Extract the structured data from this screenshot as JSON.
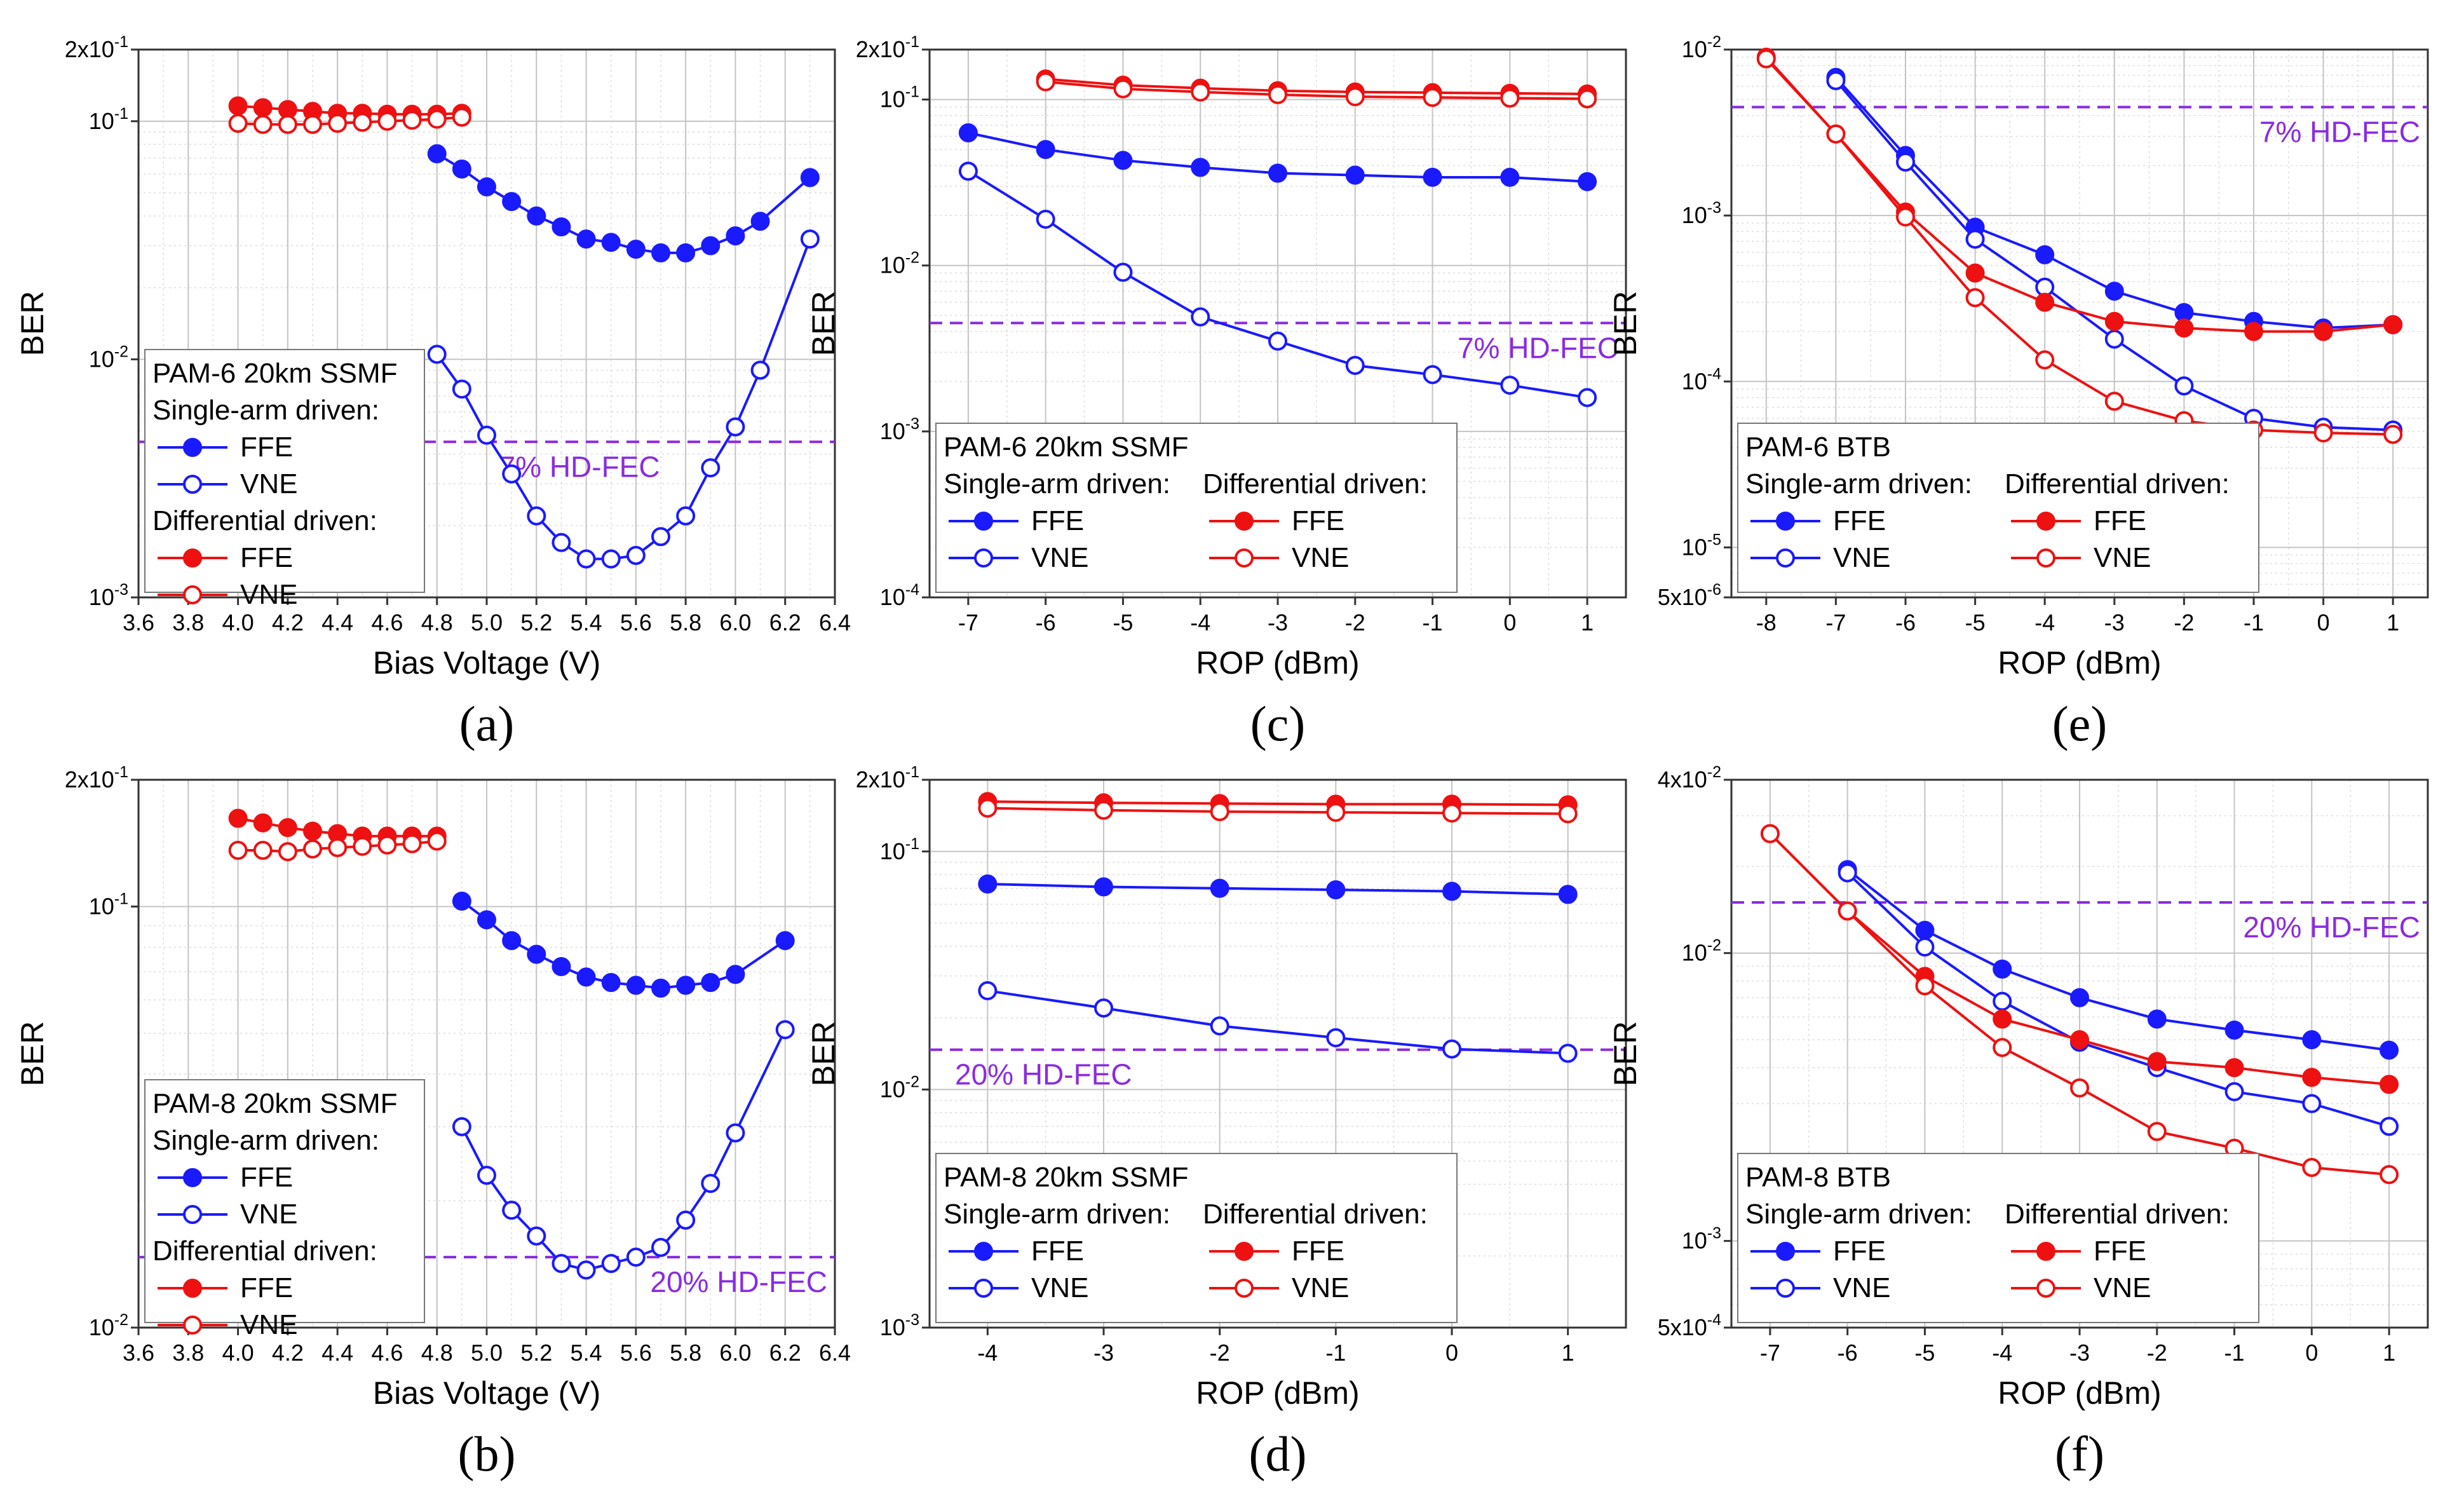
{
  "chart_data": [
    {
      "id": "a",
      "panel_label": "(a)",
      "type": "line",
      "yscale": "log",
      "xlabel": "Bias Voltage (V)",
      "ylabel": "BER",
      "xlim": [
        3.6,
        6.4
      ],
      "ylim": [
        0.001,
        0.2
      ],
      "xticks": [
        "3.6",
        "3.8",
        "4.0",
        "4.2",
        "4.4",
        "4.6",
        "4.8",
        "5.0",
        "5.2",
        "5.4",
        "5.6",
        "5.8",
        "6.0",
        "6.2",
        "6.4"
      ],
      "yticks": [
        {
          "v": 0.001,
          "label": "10-3"
        },
        {
          "v": 0.01,
          "label": "10-2"
        },
        {
          "v": 0.1,
          "label": "10-1"
        },
        {
          "v": 0.2,
          "label": "2x10-1"
        }
      ],
      "fec": {
        "value": 0.0045,
        "label": "7% HD-FEC",
        "label_pos": "left"
      },
      "legend": {
        "title": "PAM-6 20km SSMF",
        "layout": "stacked",
        "position": "lower-left",
        "group1": "Single-arm driven:",
        "group2": "Differential driven:",
        "ffe": "FFE",
        "vne": "VNE"
      },
      "series": [
        {
          "name": "FFE",
          "group": "single",
          "color": "#1a1aff",
          "marker": "filled",
          "x": [
            4.8,
            4.9,
            5.0,
            5.1,
            5.2,
            5.3,
            5.4,
            5.5,
            5.6,
            5.7,
            5.8,
            5.9,
            6.0,
            6.1,
            6.3
          ],
          "y": [
            0.073,
            0.063,
            0.053,
            0.046,
            0.04,
            0.036,
            0.032,
            0.031,
            0.029,
            0.028,
            0.028,
            0.03,
            0.033,
            0.038,
            0.058
          ]
        },
        {
          "name": "VNE",
          "group": "single",
          "color": "#1a1aff",
          "marker": "open",
          "x": [
            4.8,
            4.9,
            5.0,
            5.1,
            5.2,
            5.3,
            5.4,
            5.5,
            5.6,
            5.7,
            5.8,
            5.9,
            6.0,
            6.1,
            6.3
          ],
          "y": [
            0.0105,
            0.0075,
            0.0048,
            0.0033,
            0.0022,
            0.0017,
            0.00145,
            0.00145,
            0.0015,
            0.0018,
            0.0022,
            0.0035,
            0.0052,
            0.009,
            0.032
          ]
        },
        {
          "name": "FFE",
          "group": "differential",
          "color": "#ee1111",
          "marker": "filled",
          "x": [
            4.0,
            4.1,
            4.2,
            4.3,
            4.4,
            4.5,
            4.6,
            4.7,
            4.8,
            4.9
          ],
          "y": [
            0.116,
            0.114,
            0.112,
            0.11,
            0.108,
            0.108,
            0.107,
            0.107,
            0.107,
            0.108
          ]
        },
        {
          "name": "VNE",
          "group": "differential",
          "color": "#ee1111",
          "marker": "open",
          "x": [
            4.0,
            4.1,
            4.2,
            4.3,
            4.4,
            4.5,
            4.6,
            4.7,
            4.8,
            4.9
          ],
          "y": [
            0.098,
            0.097,
            0.097,
            0.097,
            0.098,
            0.099,
            0.1,
            0.101,
            0.102,
            0.104
          ]
        }
      ]
    },
    {
      "id": "b",
      "panel_label": "(b)",
      "type": "line",
      "yscale": "log",
      "xlabel": "Bias Voltage (V)",
      "ylabel": "BER",
      "xlim": [
        3.6,
        6.4
      ],
      "ylim": [
        0.01,
        0.2
      ],
      "xticks": [
        "3.6",
        "3.8",
        "4.0",
        "4.2",
        "4.4",
        "4.6",
        "4.8",
        "5.0",
        "5.2",
        "5.4",
        "5.6",
        "5.8",
        "6.0",
        "6.2",
        "6.4"
      ],
      "yticks": [
        {
          "v": 0.01,
          "label": "10-2"
        },
        {
          "v": 0.1,
          "label": "10-1"
        },
        {
          "v": 0.2,
          "label": "2x10-1"
        }
      ],
      "fec": {
        "value": 0.0147,
        "label": "20% HD-FEC",
        "label_pos": "right"
      },
      "legend": {
        "title": "PAM-8 20km SSMF",
        "layout": "stacked",
        "position": "lower-left",
        "group1": "Single-arm driven:",
        "group2": "Differential driven:",
        "ffe": "FFE",
        "vne": "VNE"
      },
      "series": [
        {
          "name": "FFE",
          "group": "single",
          "color": "#1a1aff",
          "marker": "filled",
          "x": [
            4.9,
            5.0,
            5.1,
            5.2,
            5.3,
            5.4,
            5.5,
            5.6,
            5.7,
            5.8,
            5.9,
            6.0,
            6.2
          ],
          "y": [
            0.103,
            0.093,
            0.083,
            0.077,
            0.072,
            0.068,
            0.066,
            0.065,
            0.064,
            0.065,
            0.066,
            0.069,
            0.083
          ]
        },
        {
          "name": "VNE",
          "group": "single",
          "color": "#1a1aff",
          "marker": "open",
          "x": [
            4.9,
            5.0,
            5.1,
            5.2,
            5.3,
            5.4,
            5.5,
            5.6,
            5.7,
            5.8,
            5.9,
            6.0,
            6.2
          ],
          "y": [
            0.03,
            0.023,
            0.019,
            0.0165,
            0.0142,
            0.0137,
            0.0142,
            0.0147,
            0.0155,
            0.018,
            0.022,
            0.029,
            0.051
          ]
        },
        {
          "name": "FFE",
          "group": "differential",
          "color": "#ee1111",
          "marker": "filled",
          "x": [
            4.0,
            4.1,
            4.2,
            4.3,
            4.4,
            4.5,
            4.6,
            4.7,
            4.8
          ],
          "y": [
            0.162,
            0.158,
            0.154,
            0.151,
            0.149,
            0.147,
            0.147,
            0.147,
            0.147
          ]
        },
        {
          "name": "VNE",
          "group": "differential",
          "color": "#ee1111",
          "marker": "open",
          "x": [
            4.0,
            4.1,
            4.2,
            4.3,
            4.4,
            4.5,
            4.6,
            4.7,
            4.8
          ],
          "y": [
            0.136,
            0.136,
            0.135,
            0.137,
            0.138,
            0.139,
            0.14,
            0.141,
            0.143
          ]
        }
      ]
    },
    {
      "id": "c",
      "panel_label": "(c)",
      "type": "line",
      "yscale": "log",
      "xlabel": "ROP (dBm)",
      "ylabel": "BER",
      "xlim": [
        -7.5,
        1.5
      ],
      "ylim": [
        0.0001,
        0.2
      ],
      "xticks": [
        "-7",
        "-6",
        "-5",
        "-4",
        "-3",
        "-2",
        "-1",
        "0",
        "1"
      ],
      "yticks": [
        {
          "v": 0.0001,
          "label": "10-4"
        },
        {
          "v": 0.001,
          "label": "10-3"
        },
        {
          "v": 0.01,
          "label": "10-2"
        },
        {
          "v": 0.1,
          "label": "10-1"
        },
        {
          "v": 0.2,
          "label": "2x10-1"
        }
      ],
      "fec": {
        "value": 0.0045,
        "label": "7% HD-FEC",
        "label_pos": "right"
      },
      "legend": {
        "title": "PAM-6 20km SSMF",
        "layout": "two-column",
        "position": "lower-left",
        "group1": "Single-arm driven:",
        "group2": "Differential driven:",
        "ffe": "FFE",
        "vne": "VNE"
      },
      "series": [
        {
          "name": "FFE",
          "group": "single",
          "color": "#1a1aff",
          "marker": "filled",
          "x": [
            -7,
            -6,
            -5,
            -4,
            -3,
            -2,
            -1,
            0,
            1
          ],
          "y": [
            0.063,
            0.05,
            0.043,
            0.039,
            0.036,
            0.035,
            0.034,
            0.034,
            0.032
          ]
        },
        {
          "name": "VNE",
          "group": "single",
          "color": "#1a1aff",
          "marker": "open",
          "x": [
            -7,
            -6,
            -5,
            -4,
            -3,
            -2,
            -1,
            0,
            1
          ],
          "y": [
            0.037,
            0.019,
            0.0091,
            0.0049,
            0.0035,
            0.0025,
            0.0022,
            0.0019,
            0.0016
          ]
        },
        {
          "name": "FFE",
          "group": "differential",
          "color": "#ee1111",
          "marker": "filled",
          "x": [
            -6,
            -5,
            -4,
            -3,
            -2,
            -1,
            0,
            1
          ],
          "y": [
            0.133,
            0.122,
            0.117,
            0.113,
            0.111,
            0.11,
            0.109,
            0.108
          ]
        },
        {
          "name": "VNE",
          "group": "differential",
          "color": "#ee1111",
          "marker": "open",
          "x": [
            -6,
            -5,
            -4,
            -3,
            -2,
            -1,
            0,
            1
          ],
          "y": [
            0.128,
            0.116,
            0.111,
            0.107,
            0.104,
            0.103,
            0.102,
            0.101
          ]
        }
      ]
    },
    {
      "id": "d",
      "panel_label": "(d)",
      "type": "line",
      "yscale": "log",
      "xlabel": "ROP (dBm)",
      "ylabel": "BER",
      "xlim": [
        -4.5,
        1.5
      ],
      "ylim": [
        0.001,
        0.2
      ],
      "xticks": [
        "-4",
        "-3",
        "-2",
        "-1",
        "0",
        "1"
      ],
      "yticks": [
        {
          "v": 0.001,
          "label": "10-3"
        },
        {
          "v": 0.01,
          "label": "10-2"
        },
        {
          "v": 0.1,
          "label": "10-1"
        },
        {
          "v": 0.2,
          "label": "2x10-1"
        }
      ],
      "fec": {
        "value": 0.0147,
        "label": "20% HD-FEC",
        "label_pos": "left"
      },
      "legend": {
        "title": "PAM-8 20km SSMF",
        "layout": "two-column",
        "position": "lower-left",
        "group1": "Single-arm driven:",
        "group2": "Differential driven:",
        "ffe": "FFE",
        "vne": "VNE"
      },
      "series": [
        {
          "name": "FFE",
          "group": "single",
          "color": "#1a1aff",
          "marker": "filled",
          "x": [
            -4,
            -3,
            -2,
            -1,
            0,
            1
          ],
          "y": [
            0.073,
            0.071,
            0.07,
            0.069,
            0.068,
            0.066
          ]
        },
        {
          "name": "VNE",
          "group": "single",
          "color": "#1a1aff",
          "marker": "open",
          "x": [
            -4,
            -3,
            -2,
            -1,
            0,
            1
          ],
          "y": [
            0.026,
            0.022,
            0.0185,
            0.0165,
            0.0148,
            0.0142
          ]
        },
        {
          "name": "FFE",
          "group": "differential",
          "color": "#ee1111",
          "marker": "filled",
          "x": [
            -4,
            -3,
            -2,
            -1,
            0,
            1
          ],
          "y": [
            0.162,
            0.16,
            0.159,
            0.158,
            0.158,
            0.157
          ]
        },
        {
          "name": "VNE",
          "group": "differential",
          "color": "#ee1111",
          "marker": "open",
          "x": [
            -4,
            -3,
            -2,
            -1,
            0,
            1
          ],
          "y": [
            0.152,
            0.149,
            0.147,
            0.146,
            0.145,
            0.144
          ]
        }
      ]
    },
    {
      "id": "e",
      "panel_label": "(e)",
      "type": "line",
      "yscale": "log",
      "xlabel": "ROP (dBm)",
      "ylabel": "BER",
      "xlim": [
        -8.5,
        1.5
      ],
      "ylim": [
        5e-06,
        0.01
      ],
      "xticks": [
        "-8",
        "-7",
        "-6",
        "-5",
        "-4",
        "-3",
        "-2",
        "-1",
        "0",
        "1"
      ],
      "yticks": [
        {
          "v": 5e-06,
          "label": "5x10-6"
        },
        {
          "v": 1e-05,
          "label": "10-5"
        },
        {
          "v": 0.0001,
          "label": "10-4"
        },
        {
          "v": 0.001,
          "label": "10-3"
        },
        {
          "v": 0.01,
          "label": "10-2"
        }
      ],
      "fec": {
        "value": 0.0045,
        "label": "7% HD-FEC",
        "label_pos": "right"
      },
      "legend": {
        "title": "PAM-6 BTB",
        "layout": "two-column",
        "position": "lower-left",
        "group1": "Single-arm driven:",
        "group2": "Differential driven:",
        "ffe": "FFE",
        "vne": "VNE"
      },
      "series": [
        {
          "name": "FFE",
          "group": "single",
          "color": "#1a1aff",
          "marker": "filled",
          "x": [
            -7,
            -6,
            -5,
            -4,
            -3,
            -2,
            -1,
            0,
            1
          ],
          "y": [
            0.0068,
            0.0023,
            0.00085,
            0.00058,
            0.00035,
            0.00026,
            0.00023,
            0.00021,
            0.00022
          ]
        },
        {
          "name": "VNE",
          "group": "single",
          "color": "#1a1aff",
          "marker": "open",
          "x": [
            -7,
            -6,
            -5,
            -4,
            -3,
            -2,
            -1,
            0,
            1
          ],
          "y": [
            0.0065,
            0.0021,
            0.00072,
            0.00037,
            0.00018,
            9.4e-05,
            6e-05,
            5.3e-05,
            5.1e-05
          ]
        },
        {
          "name": "FFE",
          "group": "differential",
          "color": "#ee1111",
          "marker": "filled",
          "x": [
            -8,
            -7,
            -6,
            -5,
            -4,
            -3,
            -2,
            -1,
            0,
            1
          ],
          "y": [
            0.009,
            0.0031,
            0.00105,
            0.00045,
            0.0003,
            0.00023,
            0.00021,
            0.0002,
            0.0002,
            0.00022
          ]
        },
        {
          "name": "VNE",
          "group": "differential",
          "color": "#ee1111",
          "marker": "open",
          "x": [
            -8,
            -7,
            -6,
            -5,
            -4,
            -3,
            -2,
            -1,
            0,
            1
          ],
          "y": [
            0.0088,
            0.0031,
            0.00098,
            0.00032,
            0.000135,
            7.6e-05,
            5.8e-05,
            5.1e-05,
            4.9e-05,
            4.8e-05
          ]
        }
      ]
    },
    {
      "id": "f",
      "panel_label": "(f)",
      "type": "line",
      "yscale": "log",
      "xlabel": "ROP (dBm)",
      "ylabel": "BER",
      "xlim": [
        -7.5,
        1.5
      ],
      "ylim": [
        0.0005,
        0.04
      ],
      "xticks": [
        "-7",
        "-6",
        "-5",
        "-4",
        "-3",
        "-2",
        "-1",
        "0",
        "1"
      ],
      "yticks": [
        {
          "v": 0.0005,
          "label": "5x10-4"
        },
        {
          "v": 0.001,
          "label": "10-3"
        },
        {
          "v": 0.01,
          "label": "10-2"
        },
        {
          "v": 0.04,
          "label": "4x10-2"
        }
      ],
      "fec": {
        "value": 0.015,
        "label": "20% HD-FEC",
        "label_pos": "right"
      },
      "legend": {
        "title": "PAM-8 BTB",
        "layout": "two-column",
        "position": "lower-left",
        "group1": "Single-arm driven:",
        "group2": "Differential driven:",
        "ffe": "FFE",
        "vne": "VNE"
      },
      "series": [
        {
          "name": "FFE",
          "group": "single",
          "color": "#1a1aff",
          "marker": "filled",
          "x": [
            -6,
            -5,
            -4,
            -3,
            -2,
            -1,
            0,
            1
          ],
          "y": [
            0.0195,
            0.012,
            0.0088,
            0.007,
            0.0059,
            0.0054,
            0.005,
            0.0046
          ]
        },
        {
          "name": "VNE",
          "group": "single",
          "color": "#1a1aff",
          "marker": "open",
          "x": [
            -6,
            -5,
            -4,
            -3,
            -2,
            -1,
            0,
            1
          ],
          "y": [
            0.019,
            0.0105,
            0.0068,
            0.0049,
            0.004,
            0.0033,
            0.003,
            0.0025
          ]
        },
        {
          "name": "FFE",
          "group": "differential",
          "color": "#ee1111",
          "marker": "filled",
          "x": [
            -7,
            -6,
            -5,
            -4,
            -3,
            -2,
            -1,
            0,
            1
          ],
          "y": [
            0.026,
            0.014,
            0.0083,
            0.0059,
            0.005,
            0.0042,
            0.004,
            0.0037,
            0.0035
          ]
        },
        {
          "name": "VNE",
          "group": "differential",
          "color": "#ee1111",
          "marker": "open",
          "x": [
            -7,
            -6,
            -5,
            -4,
            -3,
            -2,
            -1,
            0,
            1
          ],
          "y": [
            0.026,
            0.014,
            0.0077,
            0.0047,
            0.0034,
            0.0024,
            0.0021,
            0.0018,
            0.0017
          ]
        }
      ]
    }
  ]
}
